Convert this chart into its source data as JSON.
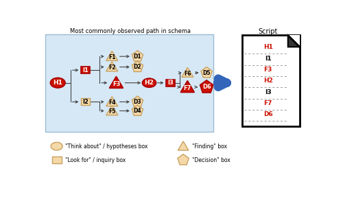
{
  "title": "Most commonly observed path in schema",
  "bg_rect_color": "#d6e8f5",
  "bg_rect_edge": "#aabbcc",
  "arrow_color": "#444444",
  "red_fill": "#cc1100",
  "red_edge": "#aa0000",
  "tan_fill": "#f5d9a8",
  "tan_outline": "#c8a060",
  "script_label": "Script",
  "script_items": [
    "H1",
    "I1",
    "F3",
    "H2",
    "I3",
    "F7",
    "D6"
  ],
  "script_red": [
    "H1",
    "F3",
    "H2",
    "F7",
    "D6"
  ],
  "big_arrow_color": "#3366bb",
  "doc_fold_color": "#222222",
  "legend_ellipse_label": "\"Think about\" / hypotheses box",
  "legend_rect_label": "\"Look for\" / inquiry box",
  "legend_tri_label": "\"Finding\" box",
  "legend_pent_label": "\"Decision\" box"
}
